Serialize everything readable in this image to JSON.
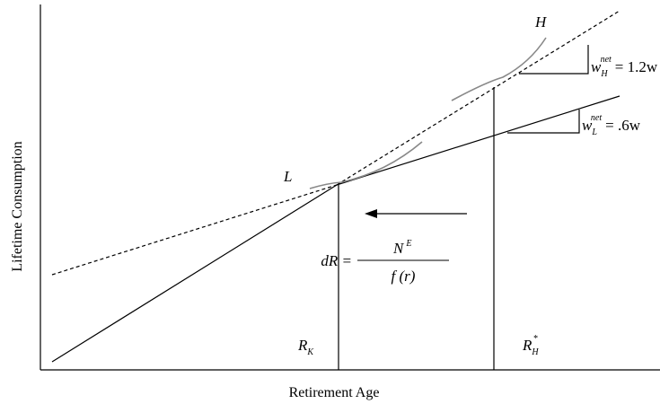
{
  "axes": {
    "x_label": "Retirement Age",
    "y_label": "Lifetime Consumption"
  },
  "curves": {
    "high": "H",
    "low": "L"
  },
  "slopes": {
    "high": {
      "base": "w",
      "sub": "H",
      "sup": "net",
      "rhs": "= 1.2w"
    },
    "low": {
      "base": "w",
      "sub": "L",
      "sup": "net",
      "rhs": "= .6w"
    }
  },
  "shift": {
    "lhs": "dR =",
    "numerator_base": "N",
    "numerator_sup": "E",
    "denominator": "f (r)"
  },
  "markers": {
    "r_k": {
      "base": "R",
      "sub": "K"
    },
    "r_h": {
      "base": "R",
      "sub": "H",
      "sup": "*"
    }
  }
}
